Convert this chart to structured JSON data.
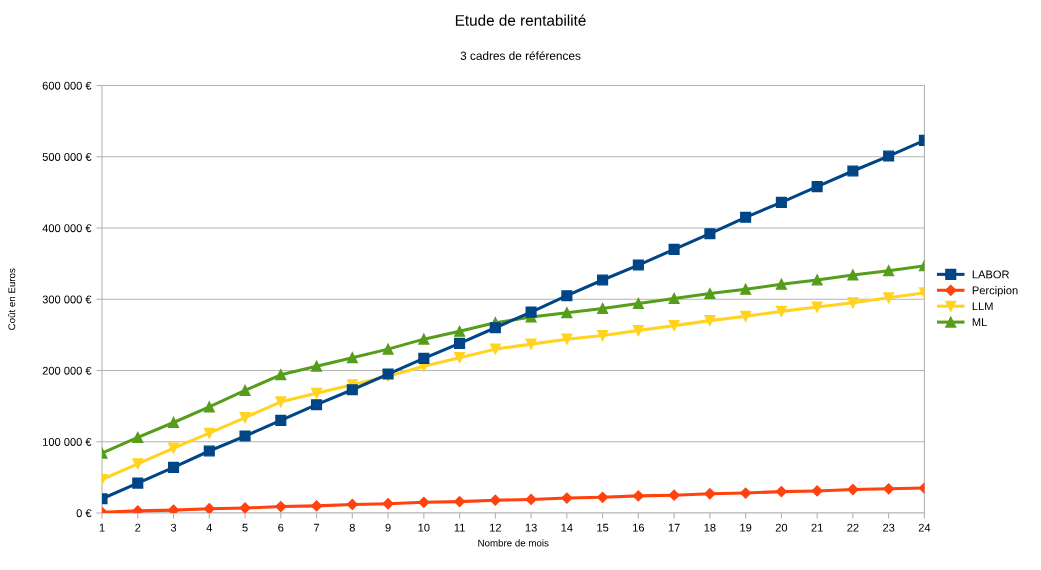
{
  "chart_data": {
    "type": "line",
    "title": "Etude de rentabilité",
    "subtitle": "3 cadres de références",
    "xlabel": "Nombre de mois",
    "ylabel": "Coût en Euros",
    "categories": [
      "1",
      "2",
      "3",
      "4",
      "5",
      "6",
      "7",
      "8",
      "9",
      "10",
      "11",
      "12",
      "13",
      "14",
      "15",
      "16",
      "17",
      "18",
      "19",
      "20",
      "21",
      "22",
      "23",
      "24"
    ],
    "series": [
      {
        "name": "LABOR",
        "color": "#004586",
        "marker": "square",
        "values": [
          20000,
          42000,
          64000,
          87000,
          108000,
          130000,
          152000,
          173000,
          195000,
          217000,
          238000,
          260000,
          282000,
          305000,
          327000,
          348000,
          370000,
          392000,
          415000,
          436000,
          458000,
          480000,
          501000,
          523000
        ]
      },
      {
        "name": "Percipion",
        "color": "#ff420e",
        "marker": "diamond",
        "values": [
          1000,
          3000,
          4000,
          6000,
          7000,
          9000,
          10000,
          12000,
          13000,
          15000,
          16000,
          18000,
          19000,
          21000,
          22000,
          24000,
          25000,
          27000,
          28000,
          30000,
          31000,
          33000,
          34000,
          35000
        ]
      },
      {
        "name": "LLM",
        "color": "#ffd320",
        "marker": "triangle_down",
        "values": [
          47000,
          69000,
          91000,
          112000,
          134000,
          156000,
          168000,
          180000,
          192000,
          206000,
          218000,
          230000,
          237000,
          244000,
          249000,
          256000,
          263000,
          270000,
          276000,
          283000,
          289000,
          295000,
          302000,
          309000
        ]
      },
      {
        "name": "ML",
        "color": "#579d1c",
        "marker": "triangle",
        "values": [
          84000,
          106000,
          127000,
          149000,
          172000,
          194000,
          206000,
          218000,
          230000,
          244000,
          255000,
          267000,
          275000,
          281000,
          287000,
          294000,
          301000,
          308000,
          314000,
          321000,
          327000,
          334000,
          340000,
          347000
        ]
      }
    ],
    "ylim": [
      0,
      600000
    ],
    "yticks": [
      {
        "value": 0,
        "label": "0 €"
      },
      {
        "value": 100000,
        "label": "100 000 €"
      },
      {
        "value": 200000,
        "label": "200 000 €"
      },
      {
        "value": 300000,
        "label": "300 000 €"
      },
      {
        "value": 400000,
        "label": "400 000 €"
      },
      {
        "value": 500000,
        "label": "500 000 €"
      },
      {
        "value": 600000,
        "label": "600 000 €"
      }
    ],
    "grid": "y",
    "legend": "right",
    "line_style": "solid"
  }
}
